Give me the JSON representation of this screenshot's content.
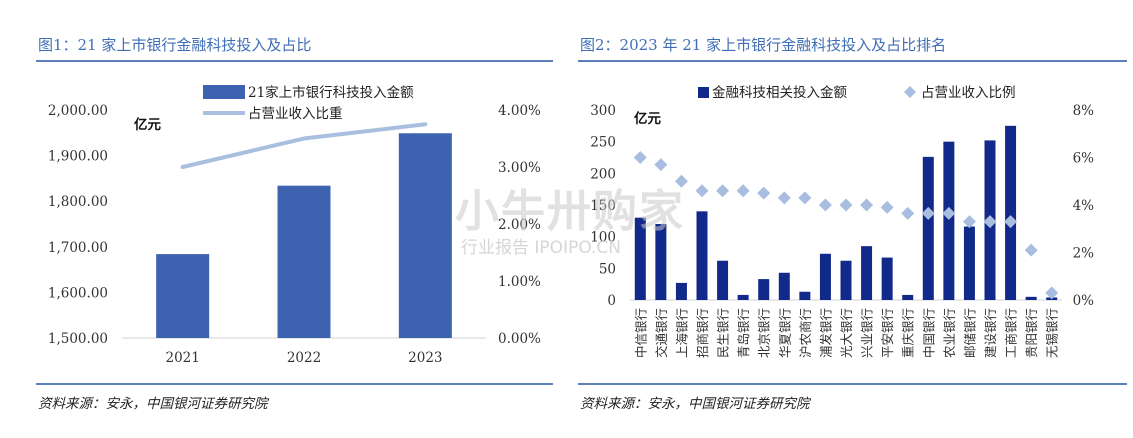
{
  "chart_data": [
    {
      "type": "bar",
      "title": "图1：21 家上市银行金融科技投入及占比",
      "unit_label": "亿元",
      "categories": [
        "2021",
        "2022",
        "2023"
      ],
      "series": [
        {
          "name": "21家上市银行科技投入金额",
          "type": "bar",
          "axis": "left",
          "values": [
            1684,
            1834,
            1949
          ]
        },
        {
          "name": "占营业收入比重",
          "type": "line",
          "axis": "right",
          "values": [
            3.0,
            3.5,
            3.75
          ]
        }
      ],
      "ylim": [
        1500,
        2000
      ],
      "y_ticks": [
        "1,500.00",
        "1,600.00",
        "1,700.00",
        "1,800.00",
        "1,900.00",
        "2,000.00"
      ],
      "y2lim": [
        0,
        4
      ],
      "y2_ticks": [
        "0.00%",
        "1.00%",
        "2.00%",
        "3.00%",
        "4.00%"
      ],
      "legend": "top-center",
      "grid": false,
      "source": "资料来源：安永，中国银河证券研究院",
      "colors": {
        "bar": "#3d63b0",
        "line": "#a8bfdf"
      }
    },
    {
      "type": "bar",
      "title": "图2：2023 年 21 家上市银行金融科技投入及占比排名",
      "unit_label": "亿元",
      "categories": [
        "中信银行",
        "交通银行",
        "上海银行",
        "招商银行",
        "民生银行",
        "青岛银行",
        "北京银行",
        "华夏银行",
        "沪农商行",
        "浦发银行",
        "光大银行",
        "兴业银行",
        "平安银行",
        "重庆银行",
        "中国银行",
        "农业银行",
        "邮储银行",
        "建设银行",
        "工商银行",
        "贵阳银行",
        "无锡银行"
      ],
      "series": [
        {
          "name": "金融科技相关投入金额",
          "type": "bar",
          "axis": "left",
          "values": [
            130,
            120,
            27,
            140,
            62,
            8,
            33,
            43,
            13,
            73,
            62,
            85,
            67,
            8,
            226,
            250,
            116,
            252,
            275,
            5,
            4
          ]
        },
        {
          "name": "占营业收入比例",
          "type": "scatter",
          "axis": "right",
          "values": [
            6.0,
            5.7,
            5.0,
            4.6,
            4.6,
            4.6,
            4.5,
            4.3,
            4.3,
            4.0,
            4.0,
            4.0,
            3.9,
            3.65,
            3.65,
            3.65,
            3.3,
            3.3,
            3.3,
            2.1,
            0.3
          ]
        }
      ],
      "ylim": [
        0,
        300
      ],
      "y_ticks": [
        "0",
        "50",
        "100",
        "150",
        "200",
        "250",
        "300"
      ],
      "y2lim": [
        0,
        8
      ],
      "y2_ticks": [
        "0%",
        "2%",
        "4%",
        "6%",
        "8%"
      ],
      "legend": "top-center",
      "grid": false,
      "source": "资料来源：安永，中国银河证券研究院",
      "colors": {
        "bar": "#10298a",
        "marker": "#a9bde0"
      }
    }
  ],
  "watermark": {
    "main": "小牛卅购家",
    "sub": "行业报告 IPOIPO.CN"
  }
}
